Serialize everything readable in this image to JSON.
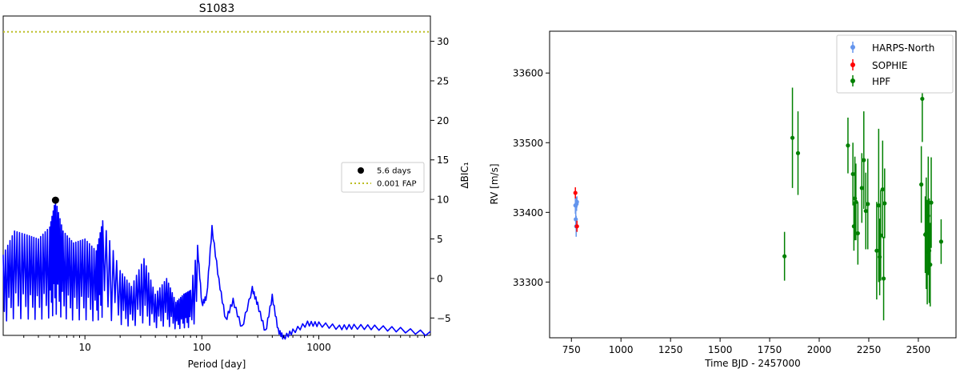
{
  "chart_data": [
    {
      "type": "line",
      "title": "S1083",
      "xlabel": "Period [day]",
      "ylabel": "ΔBIC₁",
      "xscale": "log",
      "xlim": [
        2,
        9000
      ],
      "ylim": [
        -7.2,
        33.2
      ],
      "xticks": [
        10,
        100,
        1000
      ],
      "yticks": [
        -5,
        0,
        5,
        10,
        15,
        20,
        25,
        30
      ],
      "y_axis_side": "right",
      "grid": false,
      "legend_position": "center-right",
      "fap_line": {
        "label": "0.001 FAP",
        "y": 31.2,
        "color": "#bcbd22"
      },
      "peak": {
        "label": "5.6 days",
        "x": 5.6,
        "y": 9.9,
        "color": "#000000"
      },
      "periodogram": {
        "color": "#0000ff",
        "x": [
          2.0,
          2.5,
          3.2,
          4.0,
          5.0,
          5.6,
          6.5,
          8.0,
          10.0,
          12.5,
          14.2,
          20,
          25,
          32,
          40,
          50,
          60,
          70,
          80,
          92,
          100,
          110,
          122,
          140,
          160,
          185,
          220,
          270,
          300,
          350,
          400,
          450,
          500,
          600,
          800,
          1000,
          1500,
          2000,
          3000,
          5000,
          9000
        ],
        "y": [
          3.0,
          6.0,
          5.5,
          5.0,
          6.5,
          9.9,
          6.0,
          4.5,
          5.0,
          3.5,
          7.3,
          1.0,
          -1.0,
          2.5,
          -2.0,
          0.0,
          -3.0,
          -2.0,
          -1.5,
          4.2,
          -3.0,
          -2.0,
          6.7,
          0.0,
          -5.0,
          -2.5,
          -6.0,
          -1.0,
          -3.0,
          -6.5,
          -2.0,
          -6.3,
          -7.2,
          -6.4,
          -5.4,
          -5.5,
          -5.9,
          -5.8,
          -5.9,
          -6.2,
          -6.7
        ]
      },
      "legend": [
        {
          "label": "5.6 days",
          "marker": "circle",
          "color": "#000000"
        },
        {
          "label": "0.001 FAP",
          "marker": "dotted-line",
          "color": "#bcbd22"
        }
      ]
    },
    {
      "type": "scatter",
      "xlabel": "Time BJD - 2457000",
      "ylabel": "RV [m/s]",
      "xlim": [
        640,
        2690
      ],
      "ylim": [
        33220,
        33660
      ],
      "xticks": [
        750,
        1000,
        1250,
        1500,
        1750,
        2000,
        2250,
        2500
      ],
      "yticks": [
        33300,
        33400,
        33500,
        33600
      ],
      "grid": false,
      "legend_position": "upper-right",
      "series": [
        {
          "name": "HARPS-North",
          "color": "#6495ed",
          "x": [
            770,
            772,
            774,
            776,
            778
          ],
          "y": [
            33410,
            33390,
            33380,
            33412,
            33415
          ],
          "err": [
            12,
            12,
            15,
            10,
            8
          ]
        },
        {
          "name": "SOPHIE",
          "color": "#ff0000",
          "x": [
            770,
            778
          ],
          "y": [
            33428,
            33380
          ],
          "err": [
            8,
            8
          ]
        },
        {
          "name": "HPF",
          "color": "#008000",
          "x": [
            1825,
            1865,
            1893,
            2145,
            2170,
            2175,
            2180,
            2185,
            2195,
            2215,
            2225,
            2235,
            2245,
            2290,
            2300,
            2305,
            2310,
            2320,
            2325,
            2330,
            2515,
            2520,
            2535,
            2540,
            2545,
            2550,
            2555,
            2560,
            2565,
            2615
          ],
          "y": [
            33337,
            33507,
            33485,
            33496,
            33455,
            33380,
            33420,
            33415,
            33370,
            33435,
            33475,
            33402,
            33412,
            33345,
            33410,
            33336,
            33367,
            33433,
            33305,
            33413,
            33440,
            33563,
            33368,
            33370,
            33343,
            33395,
            33345,
            33325,
            33414,
            33358
          ],
          "err": [
            35,
            72,
            60,
            40,
            45,
            35,
            60,
            55,
            45,
            50,
            70,
            55,
            65,
            70,
            110,
            55,
            65,
            70,
            60,
            50,
            55,
            62,
            55,
            80,
            75,
            85,
            75,
            60,
            65,
            32
          ]
        }
      ],
      "legend": [
        {
          "label": "HARPS-North",
          "color": "#6495ed"
        },
        {
          "label": "SOPHIE",
          "color": "#ff0000"
        },
        {
          "label": "HPF",
          "color": "#008000"
        }
      ]
    }
  ]
}
